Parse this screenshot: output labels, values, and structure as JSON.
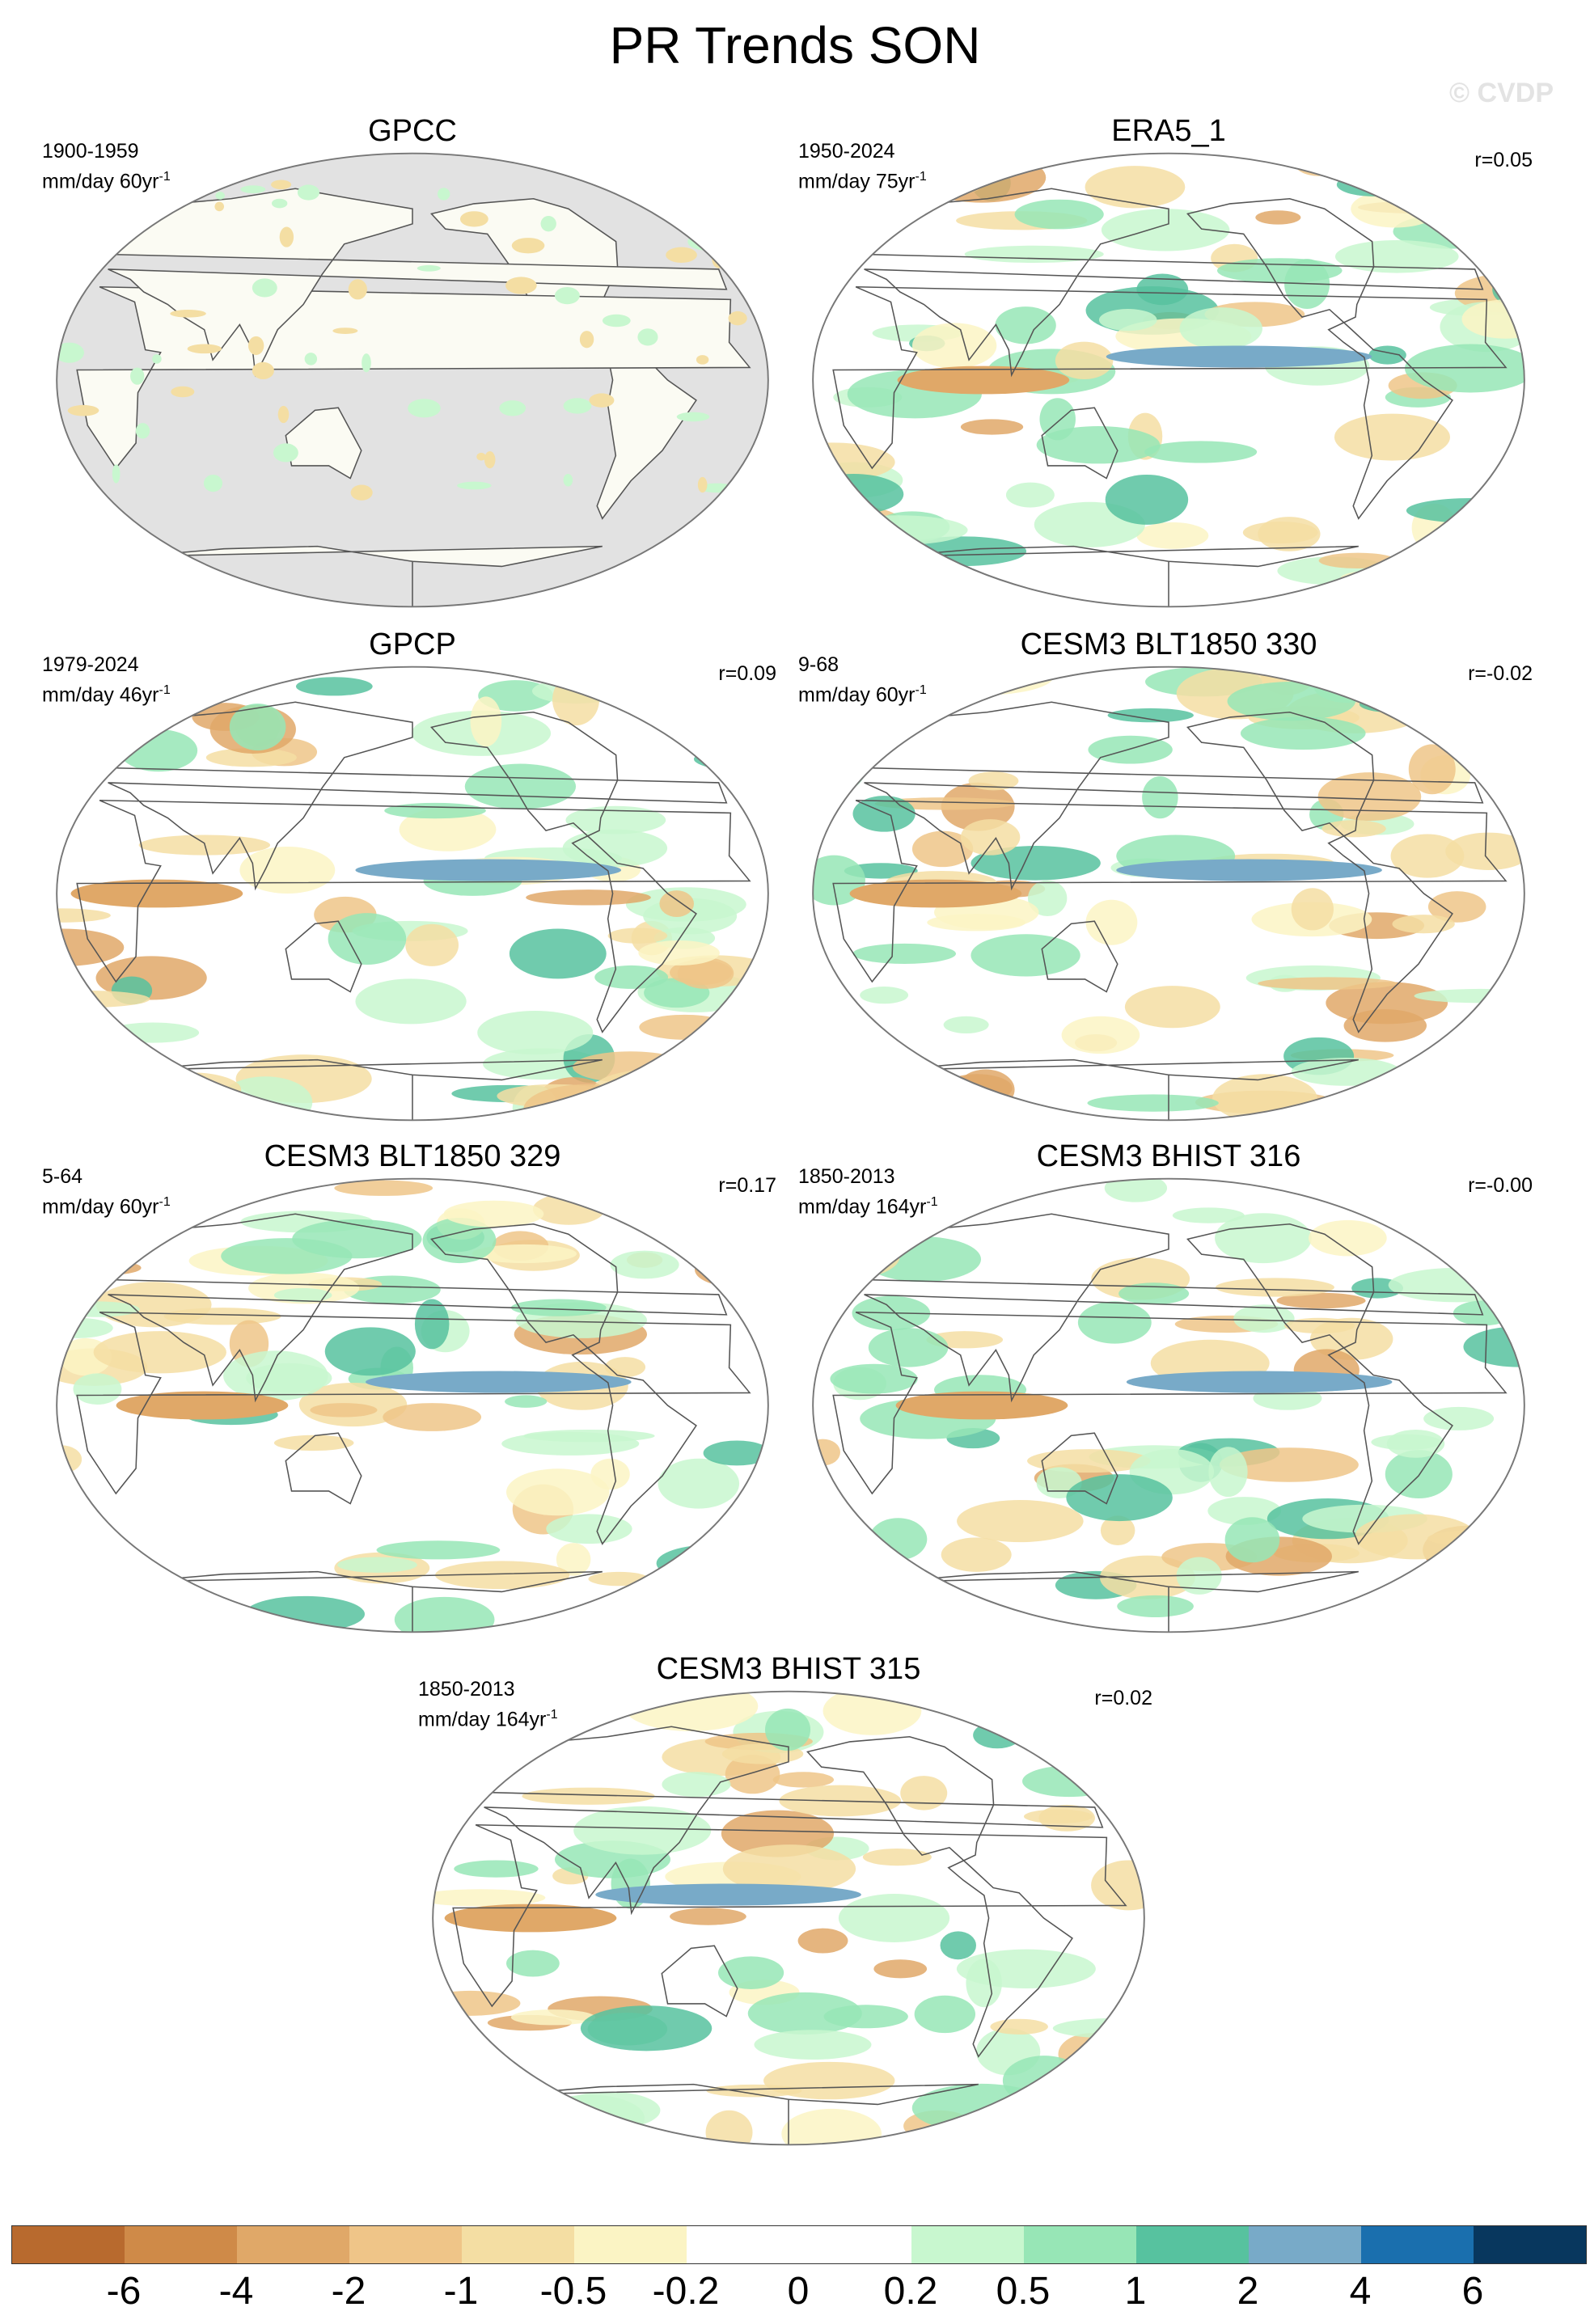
{
  "title": "PR Trends SON",
  "watermark": "© CVDP",
  "panels": [
    {
      "title": "GPCC",
      "period": "1900-1959",
      "units": "mm/day 60yr",
      "units_exp": "-1",
      "r": "",
      "ocean_masked": true
    },
    {
      "title": "ERA5_1",
      "period": "1950-2024",
      "units": "mm/day 75yr",
      "units_exp": "-1",
      "r": "r=0.05",
      "ocean_masked": false
    },
    {
      "title": "GPCP",
      "period": "1979-2024",
      "units": "mm/day 46yr",
      "units_exp": "-1",
      "r": "r=0.09",
      "ocean_masked": false
    },
    {
      "title": "CESM3 BLT1850 330",
      "period": "9-68",
      "units": "mm/day 60yr",
      "units_exp": "-1",
      "r": "r=-0.02",
      "ocean_masked": false
    },
    {
      "title": "CESM3 BLT1850 329",
      "period": "5-64",
      "units": "mm/day 60yr",
      "units_exp": "-1",
      "r": "r=0.17",
      "ocean_masked": false
    },
    {
      "title": "CESM3 BHIST 316",
      "period": "1850-2013",
      "units": "mm/day 164yr",
      "units_exp": "-1",
      "r": "r=-0.00",
      "ocean_masked": false
    },
    {
      "title": "CESM3 BHIST 315",
      "period": "1850-2013",
      "units": "mm/day 164yr",
      "units_exp": "-1",
      "r": "r=0.02",
      "ocean_masked": false
    }
  ],
  "colorbar": {
    "colors": [
      "#b86a2e",
      "#cf8a48",
      "#e0a868",
      "#efc588",
      "#f4dea3",
      "#fbf4c4",
      "#ffffff",
      "#ffffff",
      "#c8f7cf",
      "#97e6b6",
      "#57c29f",
      "#78aac8",
      "#1a6fae",
      "#08375e"
    ],
    "labels": [
      "-6",
      "-4",
      "-2",
      "-1",
      "-0.5",
      "-0.2",
      "0",
      "0.2",
      "0.5",
      "1",
      "2",
      "4",
      "6"
    ]
  },
  "colors": {
    "land_outline": "#555555",
    "masked_ocean": "#e2e2e2",
    "dry": "#e8b877",
    "wet": "#57c29f"
  }
}
